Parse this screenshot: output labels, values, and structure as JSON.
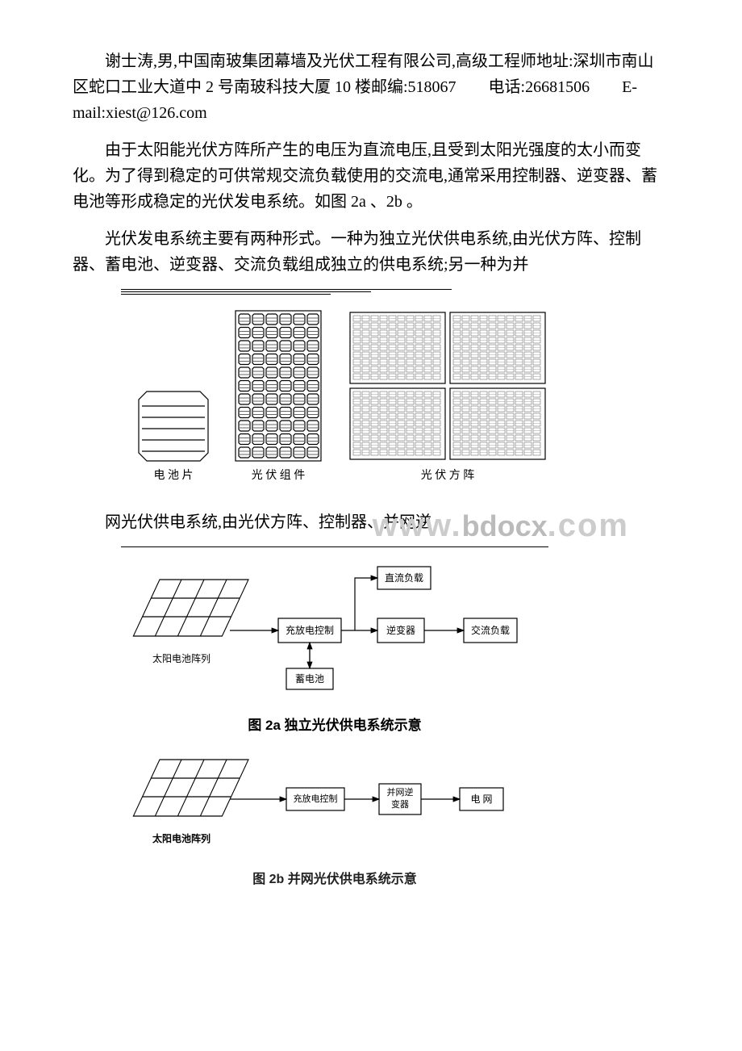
{
  "paragraphs": {
    "p1": "谢士涛,男,中国南玻集团幕墙及光伏工程有限公司,高级工程师地址:深圳市南山区蛇口工业大道中 2 号南玻科技大厦 10 楼邮编:518067　　电话:26681506　　E-mail:xiest@126.com",
    "p2": "由于太阳能光伏方阵所产生的电压为直流电压,且受到太阳光强度的太小而变化。为了得到稳定的可供常规交流负载使用的交流电,通常采用控制器、逆变器、蓄电池等形成稳定的光伏发电系统。如图 2a 、2b 。",
    "p3": "光伏发电系统主要有两种形式。一种为独立光伏供电系统,由光伏方阵、控制器、蓄电池、逆变器、交流负载组成独立的供电系统;另一种为并",
    "p4": "网光伏供电系统,由光伏方阵、控制器、并网逆"
  },
  "fig1": {
    "labels": {
      "cell": "电 池 片",
      "module": "光 伏 组 件",
      "array": "光 伏 方 阵"
    }
  },
  "fig2a": {
    "caption": "图 2a  独立光伏供电系统示意",
    "nodes": {
      "array": "太阳电池阵列",
      "controller": "充放电控制",
      "battery": "蓄电池",
      "inverter": "逆变器",
      "dcload": "直流负载",
      "acload": "交流负载"
    }
  },
  "fig2b": {
    "caption": "图 2b  并网光伏供电系统示意",
    "nodes": {
      "array": "太阳电池阵列",
      "controller": "充放电控制",
      "inverter1": "并网逆",
      "inverter2": "变器",
      "grid": "电 网"
    }
  },
  "watermark": {
    "left": "www.",
    "mid": "bdocx",
    "right": ".com"
  }
}
